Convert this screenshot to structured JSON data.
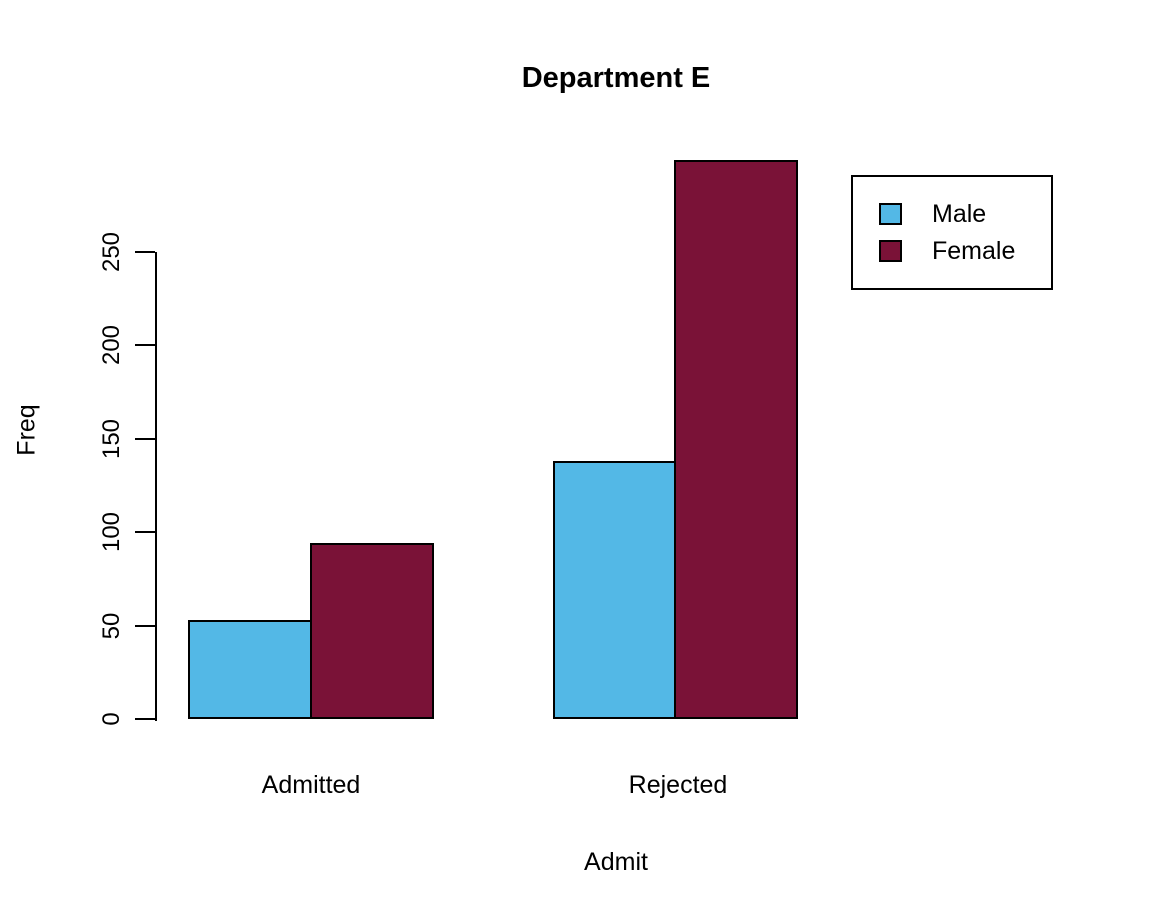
{
  "title": "Department E",
  "chart_data": {
    "type": "bar",
    "beside": true,
    "title": "Department E",
    "xlabel": "Admit",
    "ylabel": "Freq",
    "categories": [
      "Admitted",
      "Rejected"
    ],
    "series": [
      {
        "name": "Male",
        "color": "#53B8E6",
        "values": [
          53,
          138
        ]
      },
      {
        "name": "Female",
        "color": "#7A1237",
        "values": [
          94,
          299
        ]
      }
    ],
    "ylim": [
      0,
      250
    ],
    "yticks": [
      0,
      50,
      100,
      150,
      200,
      250
    ],
    "bar_border_color": "#000000",
    "axis_color": "#000000",
    "grid": false,
    "legend_position": "top-right"
  }
}
